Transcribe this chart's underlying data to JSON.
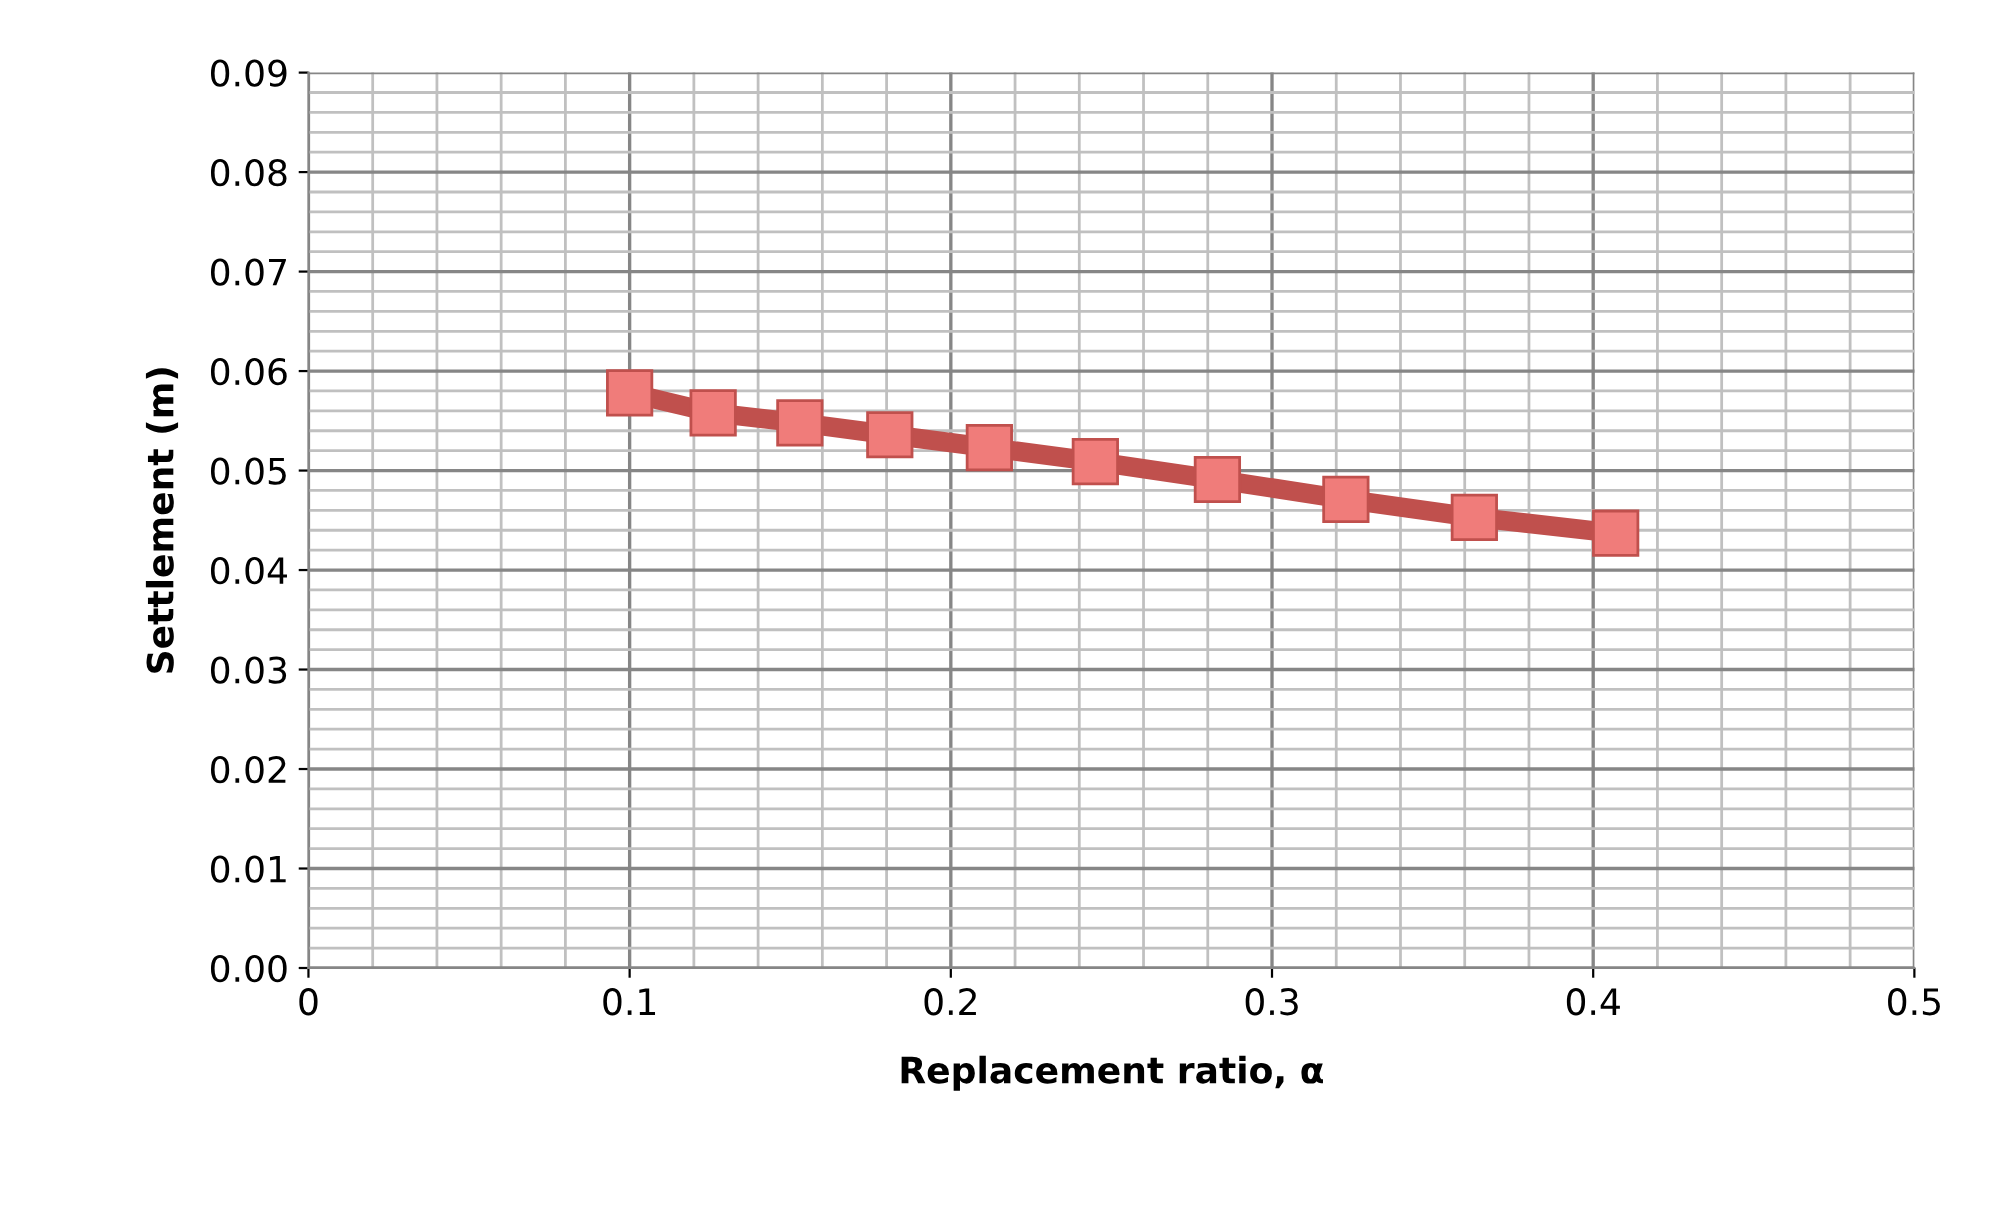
{
  "chart_data": {
    "type": "line",
    "xlabel": "Replacement ratio, α",
    "ylabel": "Settlement (m)",
    "series": [
      {
        "color": "#c0504d",
        "x": [
          0.1,
          0.126,
          0.153,
          0.181,
          0.212,
          0.245,
          0.283,
          0.323,
          0.363,
          0.407
        ],
        "values": [
          0.0578,
          0.0558,
          0.0548,
          0.0536,
          0.0523,
          0.0509,
          0.0491,
          0.0471,
          0.0453,
          0.0437
        ]
      }
    ],
    "xlim": [
      0,
      0.5
    ],
    "xticks": [
      0,
      0.1,
      0.2,
      0.3,
      0.4,
      0.5
    ],
    "ylim": [
      0,
      0.09
    ],
    "yticks": [
      {
        "value": 0,
        "label": "0.00"
      },
      {
        "value": 0.01,
        "label": "0.01"
      },
      {
        "value": 0.02,
        "label": "0.02"
      },
      {
        "value": 0.03,
        "label": "0.03"
      },
      {
        "value": 0.04,
        "label": "0.04"
      },
      {
        "value": 0.05,
        "label": "0.05"
      },
      {
        "value": 0.06,
        "label": "0.06"
      },
      {
        "value": 0.07,
        "label": "0.07"
      },
      {
        "value": 0.08,
        "label": "0.08"
      },
      {
        "value": 0.09,
        "label": "0.09"
      }
    ],
    "grid": true,
    "marker": "square",
    "line_style": "solid",
    "legend": false
  }
}
